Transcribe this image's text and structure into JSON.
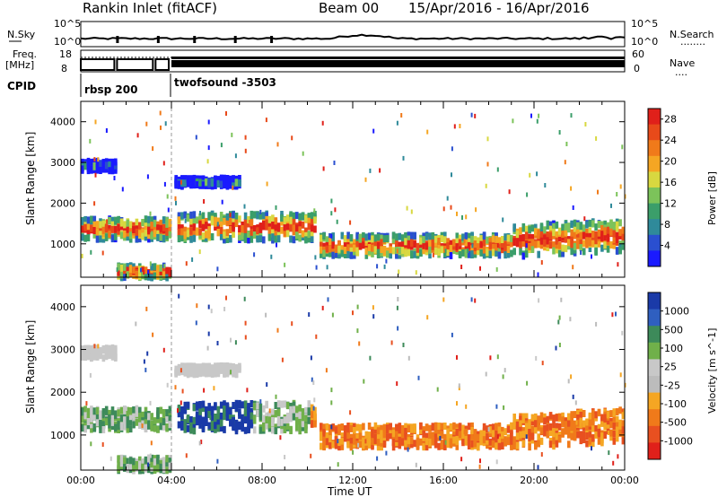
{
  "header": {
    "station": "Rankin Inlet (fitACF)",
    "beam": "Beam 00",
    "date_range": "15/Apr/2016 - 16/Apr/2016"
  },
  "strip_labels": {
    "nsky": "N.Sky",
    "nsearch": "N.Search",
    "nsearch_dots": "........",
    "freq": "Freq.",
    "freq_unit": "[MHz]",
    "nave": "Nave",
    "nave_dots": "....",
    "cpid": "CPID",
    "noise_axis_hi": "10^5",
    "noise_axis_lo": "10^0",
    "freq_hi": "18",
    "freq_lo": "8",
    "nave_hi": "60",
    "nave_lo": "0",
    "mode1": "rbsp 200",
    "mode2": "twofsound -3503"
  },
  "colors": {
    "power_scale": [
      "#1a1aff",
      "#2a4fd0",
      "#2f8a9a",
      "#3b9e6a",
      "#7cc35a",
      "#d8d840",
      "#f5a623",
      "#f07a1a",
      "#e84a1a",
      "#e0201a"
    ],
    "velocity_scale": [
      "#1a3aa8",
      "#2f5fc0",
      "#3d8a5a",
      "#70b04a",
      "#c8c8c8",
      "#bcbcbc",
      "#f5a623",
      "#f07a1a",
      "#e85020",
      "#e0201a"
    ]
  },
  "chart_data": [
    {
      "type": "heatmap",
      "panel": "power",
      "xlabel": "",
      "ylabel": "Slant Range [km]",
      "ylim": [
        180,
        4500
      ],
      "yticks": [
        "1000",
        "2000",
        "3000",
        "4000"
      ],
      "x_range_hours": [
        0,
        24
      ],
      "colorbar": {
        "label": "Power [dB]",
        "ticks": [
          "4",
          "8",
          "12",
          "16",
          "20",
          "24",
          "28"
        ],
        "range": [
          0,
          30
        ]
      }
    },
    {
      "type": "heatmap",
      "panel": "velocity",
      "xlabel": "Time UT",
      "ylabel": "Slant Range [km]",
      "ylim": [
        180,
        4500
      ],
      "yticks": [
        "1000",
        "2000",
        "3000",
        "4000"
      ],
      "xticks": [
        "00:00",
        "04:00",
        "08:00",
        "12:00",
        "16:00",
        "20:00",
        "00:00"
      ],
      "x_range_hours": [
        0,
        24
      ],
      "colorbar": {
        "label": "Velocity [m s^-1]",
        "ticks": [
          "1000",
          "500",
          "100",
          "25",
          "-25",
          "-100",
          "-500",
          "-1000"
        ]
      }
    }
  ]
}
